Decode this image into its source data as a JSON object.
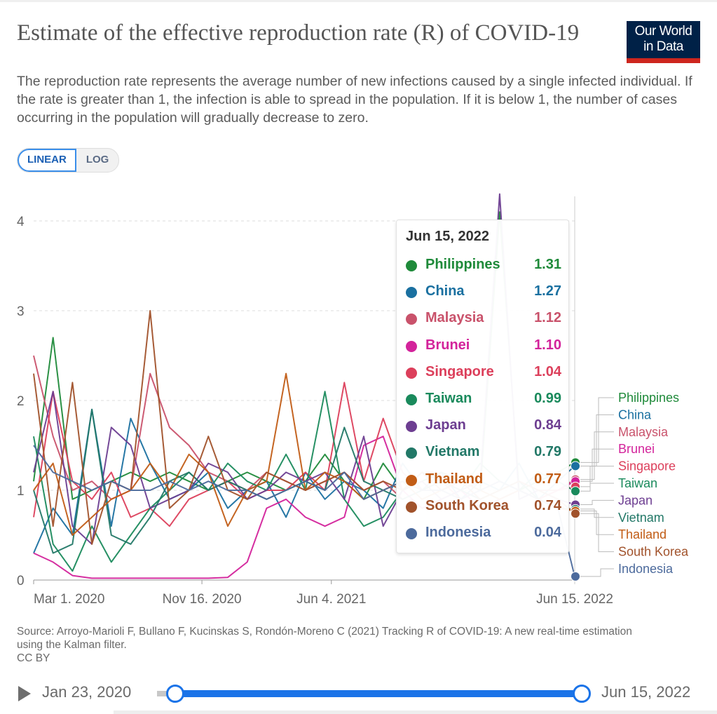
{
  "header": {
    "title": "Estimate of the effective reproduction rate (R) of COVID-19",
    "subtitle": "The reproduction rate represents the average number of new infections caused by a single infected individual. If the rate is greater than 1, the infection is able to spread in the population. If it is below 1, the number of cases occurring in the population will gradually decrease to zero.",
    "logo_line1": "Our World",
    "logo_line2": "in Data"
  },
  "scale_toggle": {
    "options": [
      "LINEAR",
      "LOG"
    ],
    "selected": "LINEAR"
  },
  "tooltip": {
    "date": "Jun 15, 2022",
    "rows": [
      {
        "name": "Philippines",
        "value": "1.31"
      },
      {
        "name": "China",
        "value": "1.27"
      },
      {
        "name": "Malaysia",
        "value": "1.12"
      },
      {
        "name": "Brunei",
        "value": "1.10"
      },
      {
        "name": "Singapore",
        "value": "1.04"
      },
      {
        "name": "Taiwan",
        "value": "0.99"
      },
      {
        "name": "Japan",
        "value": "0.84"
      },
      {
        "name": "Vietnam",
        "value": "0.79"
      },
      {
        "name": "Thailand",
        "value": "0.77"
      },
      {
        "name": "South Korea",
        "value": "0.74"
      },
      {
        "name": "Indonesia",
        "value": "0.04"
      }
    ]
  },
  "footer": {
    "source": "Source: Arroyo-Marioli F, Bullano F, Kucinskas S, Rondón-Moreno C (2021) Tracking R of COVID-19: A new real-time estimation using the Kalman filter.",
    "license": "CC BY"
  },
  "timeline": {
    "start_label": "Jan 23, 2020",
    "end_label": "Jun 15, 2022",
    "range_start": "Jan 23, 2020",
    "range_end": "Jun 15, 2022"
  },
  "chart_data": {
    "type": "line",
    "title": "Estimate of the effective reproduction rate (R) of COVID-19",
    "xlabel": "",
    "ylabel": "",
    "x_tick_labels": [
      "Mar 1, 2020",
      "Nov 16, 2020",
      "Jun 4, 2021",
      "Jun 15, 2022"
    ],
    "x_tick_days": [
      0,
      260,
      460,
      836
    ],
    "y_ticks": [
      0,
      1,
      2,
      3,
      4
    ],
    "ylim": [
      0,
      4.3
    ],
    "grid": true,
    "legend": "right",
    "hover_date": "Jun 15, 2022",
    "x_days_from_mar_1_2020": [
      0,
      30,
      60,
      90,
      120,
      150,
      180,
      210,
      240,
      270,
      300,
      330,
      360,
      390,
      420,
      450,
      480,
      510,
      540,
      570,
      600,
      630,
      660,
      690,
      720,
      750,
      780,
      810,
      836
    ],
    "series": [
      {
        "name": "Philippines",
        "color": "#1f8a3a",
        "values": [
          1.1,
          2.7,
          0.9,
          1.0,
          1.1,
          1.2,
          1.1,
          1.2,
          1.1,
          1.0,
          1.1,
          1.2,
          1.1,
          1.0,
          1.1,
          1.4,
          1.1,
          0.9,
          1.3,
          1.0,
          1.1,
          1.2,
          1.1,
          1.0,
          4.1,
          1.0,
          1.1,
          1.2,
          1.31
        ]
      },
      {
        "name": "China",
        "color": "#1a70a0",
        "values": [
          0.3,
          0.8,
          0.5,
          1.9,
          0.6,
          1.8,
          1.3,
          0.9,
          1.0,
          1.2,
          0.8,
          1.0,
          1.1,
          0.7,
          1.2,
          0.9,
          1.1,
          1.0,
          0.8,
          1.3,
          1.0,
          1.2,
          0.9,
          1.1,
          1.0,
          1.3,
          0.9,
          1.1,
          1.27
        ]
      },
      {
        "name": "Malaysia",
        "color": "#c9526b",
        "values": [
          2.5,
          1.6,
          1.0,
          1.1,
          0.9,
          1.0,
          2.3,
          1.7,
          1.5,
          1.2,
          1.1,
          1.0,
          1.2,
          1.1,
          1.0,
          1.1,
          1.2,
          1.0,
          1.1,
          0.9,
          1.0,
          1.1,
          1.0,
          0.9,
          1.0,
          1.1,
          1.0,
          1.0,
          1.12
        ]
      },
      {
        "name": "Brunei",
        "color": "#d3239b",
        "values": [
          0.3,
          0.2,
          0.05,
          0.02,
          0.02,
          0.02,
          0.02,
          0.02,
          0.02,
          0.02,
          0.03,
          0.2,
          0.8,
          0.9,
          0.7,
          0.6,
          0.7,
          1.5,
          1.6,
          1.0,
          0.8,
          0.9,
          1.0,
          0.8,
          0.9,
          1.0,
          0.9,
          1.0,
          1.1
        ]
      },
      {
        "name": "Singapore",
        "color": "#dc3f5b",
        "values": [
          0.7,
          2.1,
          1.1,
          0.9,
          1.2,
          0.7,
          0.8,
          0.6,
          0.9,
          1.0,
          1.1,
          0.9,
          1.0,
          1.0,
          1.2,
          1.0,
          2.2,
          1.1,
          1.8,
          1.2,
          1.0,
          1.1,
          0.9,
          1.0,
          1.1,
          1.0,
          0.9,
          1.0,
          1.04
        ]
      },
      {
        "name": "Taiwan",
        "color": "#1a8a5c",
        "values": [
          1.6,
          0.4,
          0.1,
          0.6,
          0.2,
          0.5,
          0.8,
          1.0,
          1.2,
          1.0,
          1.3,
          1.1,
          1.0,
          1.4,
          1.0,
          2.1,
          0.9,
          0.6,
          0.7,
          1.0,
          1.2,
          1.1,
          1.0,
          1.3,
          1.1,
          1.0,
          1.2,
          1.1,
          0.99
        ]
      },
      {
        "name": "Japan",
        "color": "#6d3e91",
        "values": [
          1.2,
          2.1,
          0.6,
          0.4,
          1.7,
          1.5,
          0.8,
          0.9,
          1.0,
          1.3,
          1.2,
          0.9,
          1.0,
          1.2,
          1.1,
          1.2,
          0.9,
          1.6,
          0.6,
          1.0,
          1.1,
          0.9,
          1.0,
          1.1,
          4.3,
          0.9,
          1.0,
          0.9,
          0.84
        ]
      },
      {
        "name": "Vietnam",
        "color": "#227867",
        "values": [
          1.0,
          0.3,
          0.4,
          1.9,
          0.5,
          0.4,
          0.7,
          1.1,
          1.2,
          1.0,
          1.1,
          1.0,
          0.9,
          1.0,
          1.1,
          1.0,
          1.7,
          1.1,
          1.0,
          0.9,
          1.0,
          1.1,
          1.0,
          0.9,
          1.0,
          1.1,
          0.9,
          0.8,
          0.79
        ]
      },
      {
        "name": "Thailand",
        "color": "#c15c15",
        "values": [
          1.0,
          1.3,
          0.5,
          0.7,
          0.9,
          1.0,
          1.3,
          1.0,
          1.4,
          1.2,
          0.6,
          1.0,
          1.1,
          2.3,
          1.0,
          1.2,
          1.1,
          0.9,
          1.0,
          1.1,
          0.9,
          1.0,
          1.1,
          1.0,
          0.9,
          1.0,
          0.9,
          0.8,
          0.77
        ]
      },
      {
        "name": "South Korea",
        "color": "#a1522b",
        "values": [
          2.3,
          0.6,
          2.2,
          0.4,
          1.1,
          1.0,
          3.0,
          0.8,
          1.0,
          1.6,
          1.0,
          0.9,
          1.2,
          1.1,
          1.0,
          1.1,
          1.2,
          1.0,
          1.1,
          1.0,
          1.2,
          1.0,
          1.1,
          0.9,
          1.0,
          1.1,
          1.0,
          0.9,
          0.74
        ]
      },
      {
        "name": "Indonesia",
        "color": "#4c6a9c",
        "values": [
          1.5,
          1.2,
          1.1,
          1.0,
          1.1,
          1.0,
          1.0,
          1.1,
          1.0,
          1.1,
          1.0,
          1.0,
          0.9,
          1.0,
          1.1,
          1.0,
          1.2,
          0.9,
          1.0,
          1.1,
          1.0,
          1.0,
          0.9,
          1.0,
          1.1,
          1.0,
          0.9,
          0.8,
          0.04
        ]
      }
    ]
  }
}
